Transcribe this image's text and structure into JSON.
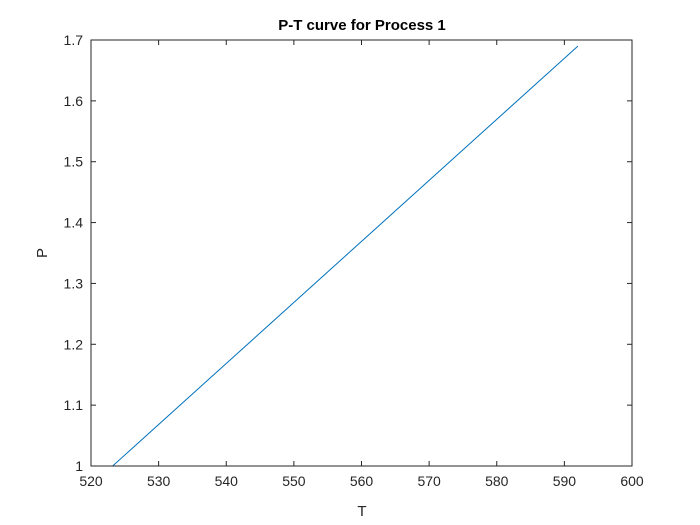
{
  "chart_data": {
    "type": "line",
    "title": "P-T curve for Process 1",
    "xlabel": "T",
    "ylabel": "P",
    "xlim": [
      520,
      600
    ],
    "ylim": [
      1,
      1.7
    ],
    "xticks": [
      520,
      530,
      540,
      550,
      560,
      570,
      580,
      590,
      600
    ],
    "yticks": [
      1,
      1.1,
      1.2,
      1.3,
      1.4,
      1.5,
      1.6,
      1.7
    ],
    "xtick_labels": [
      "520",
      "530",
      "540",
      "550",
      "560",
      "570",
      "580",
      "590",
      "600"
    ],
    "ytick_labels": [
      "1",
      "1.1",
      "1.2",
      "1.3",
      "1.4",
      "1.5",
      "1.6",
      "1.7"
    ],
    "grid": false,
    "series": [
      {
        "color": "#0072bd",
        "x": [
          523.2,
          592.0
        ],
        "y": [
          1.0,
          1.69
        ]
      }
    ]
  }
}
